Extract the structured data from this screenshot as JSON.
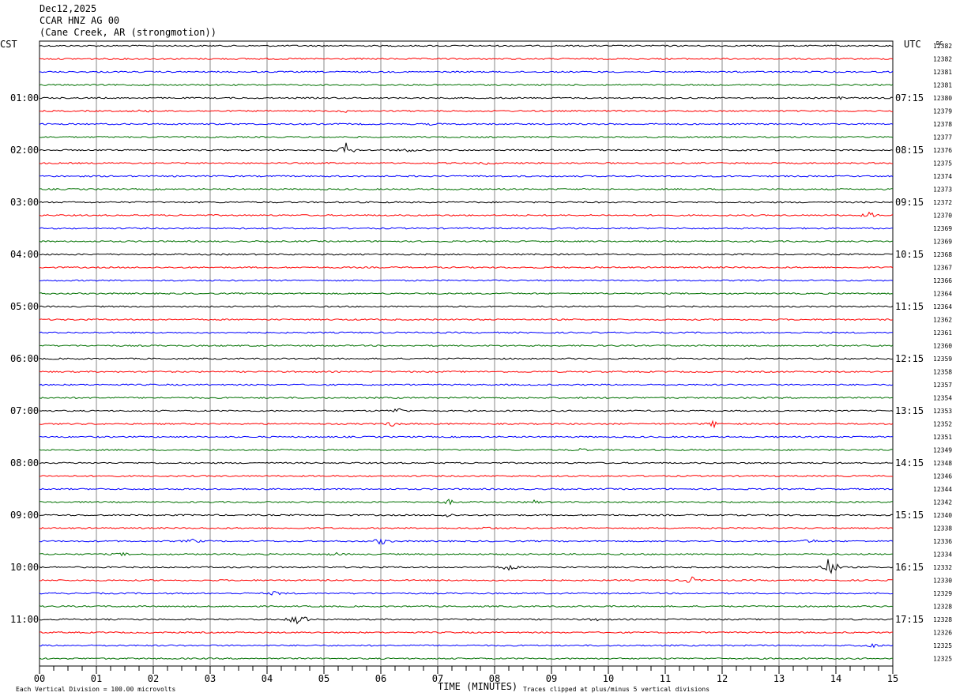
{
  "header": {
    "date": "Dec12,2025",
    "station": "CCAR HNZ AG 00",
    "location": "(Cane Creek, AR (strongmotion))"
  },
  "chart_data": {
    "type": "line",
    "left_timezone": "CST",
    "right_timezone": "UTC",
    "dc_label": "DC",
    "xlabel": "TIME (MINUTES)",
    "xlim": [
      0,
      15
    ],
    "x_ticks": [
      "00",
      "01",
      "02",
      "03",
      "04",
      "05",
      "06",
      "07",
      "08",
      "09",
      "10",
      "11",
      "12",
      "13",
      "14",
      "15"
    ],
    "footer_left": "Each Vertical Division =  100.00 microvolts",
    "footer_right": "Traces clipped at plus/minus 5 vertical divisions",
    "trace_colors": [
      "#000000",
      "#ff0000",
      "#0000ff",
      "#007000"
    ],
    "cst_hour_labels": [
      "01:00",
      "02:00",
      "03:00",
      "04:00",
      "05:00",
      "06:00",
      "07:00",
      "08:00",
      "09:00",
      "10:00",
      "11:00"
    ],
    "utc_hour_labels": [
      "07:15",
      "08:15",
      "09:15",
      "10:15",
      "11:15",
      "12:15",
      "13:15",
      "14:15",
      "15:15",
      "16:15",
      "17:15"
    ],
    "dc_values": [
      12382,
      12382,
      12381,
      12381,
      12380,
      12379,
      12378,
      12377,
      12376,
      12375,
      12374,
      12373,
      12372,
      12370,
      12369,
      12369,
      12368,
      12367,
      12366,
      12364,
      12364,
      12362,
      12361,
      12360,
      12359,
      12358,
      12357,
      12354,
      12353,
      12352,
      12351,
      12349,
      12348,
      12346,
      12344,
      12342,
      12340,
      12338,
      12336,
      12334,
      12332,
      12330,
      12329,
      12328,
      12328,
      12326,
      12325,
      12325
    ],
    "events": [
      {
        "trace": 4,
        "minute": 14.1,
        "amplitude": 3
      },
      {
        "trace": 5,
        "minute": 5.4,
        "amplitude": 1.5
      },
      {
        "trace": 5,
        "minute": 1.8,
        "amplitude": 1.5
      },
      {
        "trace": 6,
        "minute": 6.9,
        "amplitude": 1
      },
      {
        "trace": 8,
        "minute": 5.4,
        "amplitude": 10
      },
      {
        "trace": 8,
        "minute": 6.45,
        "amplitude": 3
      },
      {
        "trace": 9,
        "minute": 7.9,
        "amplitude": 2
      },
      {
        "trace": 13,
        "minute": 14.6,
        "amplitude": 4
      },
      {
        "trace": 28,
        "minute": 6.3,
        "amplitude": 4
      },
      {
        "trace": 29,
        "minute": 6.2,
        "amplitude": 3
      },
      {
        "trace": 29,
        "minute": 11.85,
        "amplitude": 4
      },
      {
        "trace": 31,
        "minute": 9.5,
        "amplitude": 2
      },
      {
        "trace": 35,
        "minute": 7.2,
        "amplitude": 3
      },
      {
        "trace": 35,
        "minute": 8.7,
        "amplitude": 2
      },
      {
        "trace": 36,
        "minute": 7.15,
        "amplitude": 3
      },
      {
        "trace": 37,
        "minute": 7.85,
        "amplitude": 2
      },
      {
        "trace": 38,
        "minute": 2.7,
        "amplitude": 3
      },
      {
        "trace": 38,
        "minute": 6.0,
        "amplitude": 5
      },
      {
        "trace": 38,
        "minute": 13.55,
        "amplitude": 3
      },
      {
        "trace": 39,
        "minute": 1.45,
        "amplitude": 2
      },
      {
        "trace": 39,
        "minute": 5.2,
        "amplitude": 2
      },
      {
        "trace": 40,
        "minute": 8.25,
        "amplitude": 5
      },
      {
        "trace": 40,
        "minute": 13.9,
        "amplitude": 18
      },
      {
        "trace": 41,
        "minute": 11.45,
        "amplitude": 5
      },
      {
        "trace": 42,
        "minute": 4.15,
        "amplitude": 3
      },
      {
        "trace": 44,
        "minute": 4.55,
        "amplitude": 14
      },
      {
        "trace": 44,
        "minute": 9.8,
        "amplitude": 2
      },
      {
        "trace": 46,
        "minute": 14.6,
        "amplitude": 4
      }
    ]
  }
}
